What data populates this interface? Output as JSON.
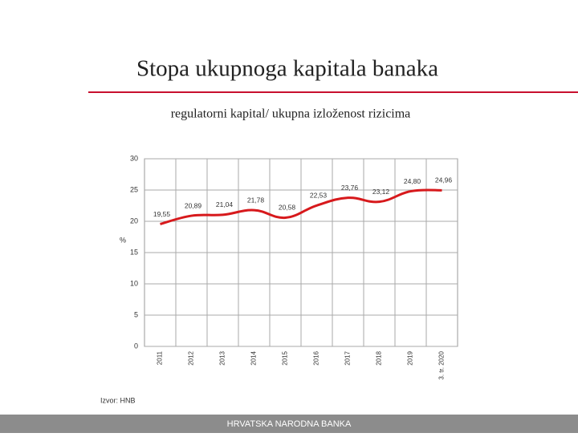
{
  "chart_data": {
    "type": "line",
    "title": "Stopa ukupnoga kapitala banaka",
    "subtitle": "regulatorni kapital/ ukupna izloženost rizicima",
    "y_label": "%",
    "source": "Izvor: HNB",
    "footer": "HRVATSKA NARODNA BANKA",
    "categories": [
      "2011",
      "2012",
      "2013",
      "2014",
      "2015",
      "2016",
      "2017",
      "2018",
      "2019",
      "3. tr. 2020"
    ],
    "values": [
      19.55,
      20.89,
      21.04,
      21.78,
      20.58,
      22.53,
      23.76,
      23.12,
      24.8,
      24.96
    ],
    "value_labels": [
      "19,55",
      "20,89",
      "21,04",
      "21,78",
      "20,58",
      "22,53",
      "23,76",
      "23,12",
      "24,80",
      "24,96"
    ],
    "color": "#d7191c",
    "ylim": [
      0,
      30
    ],
    "yticks": [
      0,
      5,
      10,
      15,
      20,
      25,
      30
    ],
    "grid": true
  }
}
